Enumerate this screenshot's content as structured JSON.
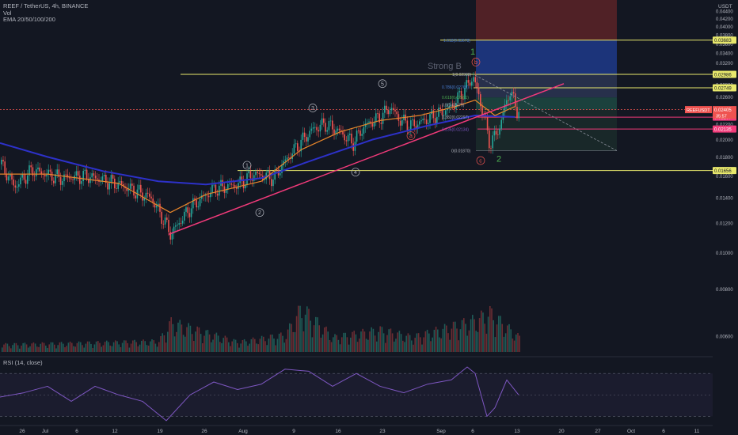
{
  "header": {
    "symbol_line": "REEF / TetherUS, 4h, BINANCE",
    "vol_label": "Vol",
    "ema_label": "EMA 20/50/100/200",
    "currency": "USDT"
  },
  "colors": {
    "background": "#131722",
    "candle_up": "#26a69a",
    "candle_down": "#ef5350",
    "ema_fast": "#e8862a",
    "ema_slow": "#2d31c9",
    "trendline": "#f23a7a",
    "fib_line": "#e8e86c",
    "rsi_line": "#7e57c2",
    "long_zone_top": "#1e3a8a",
    "long_zone_mid": "#2a3350",
    "stop_zone": "#5c2327",
    "target_zone": "#1d4640"
  },
  "chart_data": {
    "type": "candlestick",
    "title": "REEF / TetherUS, 4h, BINANCE",
    "xlabel": "",
    "ylabel": "",
    "x_tick_labels": [
      "26",
      "Jul",
      "6",
      "12",
      "19",
      "26",
      "Aug",
      "9",
      "16",
      "23",
      "Sep",
      "6",
      "13",
      "20",
      "27",
      "Oct",
      "6",
      "11"
    ],
    "y_tick_labels": [
      "0.04400",
      "0.04200",
      "0.04000",
      "0.03800",
      "0.03600",
      "0.03400",
      "0.03200",
      "0.03000",
      "0.02800",
      "0.02600",
      "0.02400",
      "0.02200",
      "0.02000",
      "0.01800",
      "0.01600",
      "0.01400",
      "0.01200",
      "0.01000",
      "0.00800",
      "0.00600"
    ],
    "log_scale": true,
    "grid": false,
    "price_path": [
      [
        0,
        0.0172
      ],
      [
        18,
        0.015
      ],
      [
        40,
        0.0166
      ],
      [
        75,
        0.0158
      ],
      [
        110,
        0.016
      ],
      [
        150,
        0.0152
      ],
      [
        190,
        0.014
      ],
      [
        215,
        0.0112
      ],
      [
        240,
        0.0132
      ],
      [
        270,
        0.0148
      ],
      [
        300,
        0.0152
      ],
      [
        320,
        0.0162
      ],
      [
        345,
        0.0158
      ],
      [
        360,
        0.0176
      ],
      [
        380,
        0.0198
      ],
      [
        395,
        0.0214
      ],
      [
        410,
        0.022
      ],
      [
        425,
        0.0212
      ],
      [
        445,
        0.0196
      ],
      [
        460,
        0.0218
      ],
      [
        480,
        0.023
      ],
      [
        492,
        0.0244
      ],
      [
        505,
        0.0225
      ],
      [
        520,
        0.0218
      ],
      [
        535,
        0.0225
      ],
      [
        550,
        0.0232
      ],
      [
        570,
        0.0245
      ],
      [
        585,
        0.027
      ],
      [
        597,
        0.0294
      ],
      [
        606,
        0.025
      ],
      [
        618,
        0.0194
      ],
      [
        630,
        0.0215
      ],
      [
        643,
        0.027
      ],
      [
        652,
        0.024
      ]
    ],
    "ema_fast_path": [
      [
        0,
        0.0162
      ],
      [
        60,
        0.0162
      ],
      [
        150,
        0.0153
      ],
      [
        215,
        0.0128
      ],
      [
        260,
        0.0143
      ],
      [
        330,
        0.0155
      ],
      [
        380,
        0.0188
      ],
      [
        430,
        0.021
      ],
      [
        480,
        0.0225
      ],
      [
        530,
        0.0232
      ],
      [
        575,
        0.0245
      ],
      [
        600,
        0.0255
      ],
      [
        625,
        0.0232
      ],
      [
        650,
        0.0245
      ]
    ],
    "ema_slow_path": [
      [
        0,
        0.0196
      ],
      [
        60,
        0.018
      ],
      [
        130,
        0.0165
      ],
      [
        200,
        0.0155
      ],
      [
        260,
        0.0152
      ],
      [
        330,
        0.0158
      ],
      [
        400,
        0.0178
      ],
      [
        470,
        0.02
      ],
      [
        540,
        0.0218
      ],
      [
        600,
        0.0232
      ],
      [
        650,
        0.023
      ]
    ],
    "volume_path": [
      [
        0,
        0.15
      ],
      [
        100,
        0.18
      ],
      [
        200,
        0.22
      ],
      [
        215,
        0.6
      ],
      [
        300,
        0.2
      ],
      [
        360,
        0.35
      ],
      [
        380,
        0.9
      ],
      [
        420,
        0.3
      ],
      [
        480,
        0.45
      ],
      [
        520,
        0.3
      ],
      [
        600,
        0.65
      ],
      [
        618,
        0.8
      ],
      [
        655,
        0.3
      ]
    ],
    "rsi": {
      "label": "RSI (14, close)",
      "levels": [
        "80.00",
        "60.00",
        "40.00"
      ],
      "path": [
        [
          0,
          48
        ],
        [
          30,
          52
        ],
        [
          60,
          58
        ],
        [
          90,
          44
        ],
        [
          120,
          58
        ],
        [
          150,
          50
        ],
        [
          180,
          44
        ],
        [
          210,
          26
        ],
        [
          240,
          50
        ],
        [
          270,
          62
        ],
        [
          300,
          55
        ],
        [
          330,
          60
        ],
        [
          360,
          74
        ],
        [
          390,
          72
        ],
        [
          420,
          58
        ],
        [
          450,
          70
        ],
        [
          480,
          58
        ],
        [
          510,
          52
        ],
        [
          540,
          60
        ],
        [
          570,
          64
        ],
        [
          590,
          76
        ],
        [
          600,
          70
        ],
        [
          615,
          30
        ],
        [
          625,
          38
        ],
        [
          640,
          64
        ],
        [
          655,
          50
        ]
      ]
    },
    "horizontal_levels": [
      {
        "price": 0.03683,
        "label": "0.03683"
      },
      {
        "price": 0.02986,
        "label": "0.02986"
      },
      {
        "price": 0.02749,
        "label": "0.02749"
      },
      {
        "price": 0.02297,
        "label": "0.02297"
      },
      {
        "price": 0.02135,
        "label": "0.02135"
      },
      {
        "price": 0.01656,
        "label": "0.01656"
      }
    ],
    "current_price": {
      "label": "REEFUSDT",
      "value": "0.02405",
      "countdown": "35:57"
    },
    "fib_labels": [
      {
        "text": "1.618(0.03678)",
        "price": 0.03678
      },
      {
        "text": "1(0.02988)",
        "price": 0.02988
      },
      {
        "text": "0.786(0.02765)",
        "price": 0.02765
      },
      {
        "text": "0.618(0.02591)",
        "price": 0.02591
      },
      {
        "text": "0.5(0.02479)",
        "price": 0.02479
      },
      {
        "text": "0.382(0.02297)",
        "price": 0.02297
      },
      {
        "text": "0.236(0.02134)",
        "price": 0.02134
      },
      {
        "text": "0(0.01870)",
        "price": 0.0187
      }
    ],
    "wave_labels": [
      {
        "text": "1",
        "style": "circle",
        "x": 312,
        "price": 0.0171
      },
      {
        "text": "2",
        "style": "circle",
        "x": 328,
        "price": 0.0128
      },
      {
        "text": "3",
        "style": "circle",
        "x": 395,
        "price": 0.0243
      },
      {
        "text": "4",
        "style": "circle",
        "x": 449,
        "price": 0.0164
      },
      {
        "text": "5",
        "style": "circle",
        "x": 483,
        "price": 0.0282
      },
      {
        "text": "a",
        "style": "circle-red",
        "x": 519,
        "price": 0.0205
      },
      {
        "text": "b",
        "style": "circle-red",
        "x": 601,
        "price": 0.0322
      },
      {
        "text": "c",
        "style": "circle-red",
        "x": 607,
        "price": 0.0176
      },
      {
        "text": "1",
        "style": "green",
        "x": 597,
        "price": 0.0344
      },
      {
        "text": "2",
        "style": "green",
        "x": 630,
        "price": 0.0178
      }
    ],
    "annotation": "Strong B"
  }
}
